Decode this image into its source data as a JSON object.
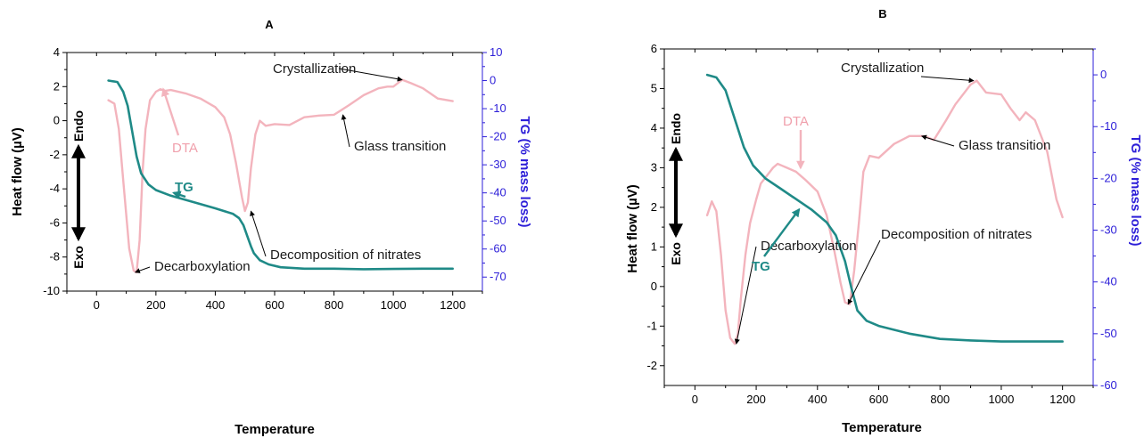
{
  "colors": {
    "tg": "#1f8a87",
    "dta": "#f3b4bd",
    "right_axis": "#2d1fd8",
    "axis": "#000000",
    "annotation_arrow": "#000000"
  },
  "chart_data": [
    {
      "type": "line",
      "panel_label": "A",
      "xlabel": "Temperature",
      "ylabel": "Heat flow (µV)",
      "y2label": "TG (% mass loss)",
      "xlim": [
        -100,
        1300
      ],
      "ylim": [
        -10,
        4
      ],
      "y2lim": [
        -75,
        10
      ],
      "x_ticks": [
        0,
        200,
        400,
        600,
        800,
        1000,
        1200
      ],
      "y_ticks": [
        -10,
        -8,
        -6,
        -4,
        -2,
        0,
        2,
        4
      ],
      "y2_ticks": [
        -70,
        -60,
        -50,
        -40,
        -30,
        -20,
        -10,
        0,
        10
      ],
      "endo_label": "Endo",
      "exo_label": "Exo",
      "series": [
        {
          "name": "DTA",
          "axis": "left",
          "x": [
            40,
            60,
            75,
            90,
            110,
            125,
            135,
            145,
            155,
            165,
            180,
            200,
            215,
            230,
            250,
            300,
            350,
            400,
            430,
            450,
            470,
            490,
            500,
            510,
            520,
            535,
            550,
            570,
            600,
            650,
            700,
            750,
            800,
            850,
            900,
            950,
            980,
            1000,
            1030,
            1060,
            1100,
            1150,
            1200
          ],
          "values": [
            1.2,
            1.0,
            -0.5,
            -3.5,
            -7.5,
            -8.8,
            -8.9,
            -7.0,
            -3.0,
            -0.5,
            1.2,
            1.7,
            1.85,
            1.75,
            1.8,
            1.6,
            1.3,
            0.8,
            0.2,
            -0.8,
            -2.5,
            -4.5,
            -5.3,
            -4.8,
            -2.8,
            -0.8,
            0.0,
            -0.3,
            -0.2,
            -0.25,
            0.2,
            0.3,
            0.35,
            0.9,
            1.5,
            1.9,
            2.0,
            2.0,
            2.4,
            2.2,
            1.9,
            1.3,
            1.15
          ]
        },
        {
          "name": "TG",
          "axis": "right",
          "x": [
            40,
            70,
            90,
            105,
            120,
            135,
            150,
            175,
            200,
            250,
            300,
            350,
            400,
            430,
            460,
            480,
            495,
            510,
            520,
            530,
            550,
            580,
            620,
            700,
            800,
            900,
            1000,
            1100,
            1200
          ],
          "values": [
            0,
            -0.5,
            -4,
            -9,
            -18,
            -27,
            -33,
            -37,
            -39,
            -41,
            -42.5,
            -44,
            -45.5,
            -46.5,
            -47.5,
            -49,
            -51.5,
            -56,
            -59,
            -61.5,
            -64,
            -65.5,
            -66.5,
            -67,
            -67,
            -67.2,
            -67.1,
            -67,
            -67
          ]
        }
      ],
      "annotations": [
        {
          "text": "Crystallization",
          "x": 1030,
          "y": 2.4
        },
        {
          "text": "Glass transition",
          "x": 830,
          "y": 0.35
        },
        {
          "text": "Decomposition of nitrates",
          "x": 520,
          "y": -5.3
        },
        {
          "text": "Decarboxylation",
          "x": 130,
          "y": -8.9
        },
        {
          "text": "DTA",
          "x": 225,
          "y": 1.85
        },
        {
          "text": "TG",
          "x": 260,
          "y": -40
        }
      ]
    },
    {
      "type": "line",
      "panel_label": "B",
      "xlabel": "Temperature",
      "ylabel": "Heat flow (µV)",
      "y2label": "TG (% mass loss)",
      "xlim": [
        -100,
        1300
      ],
      "ylim": [
        -2.5,
        6
      ],
      "y2lim": [
        -60,
        5
      ],
      "x_ticks": [
        0,
        200,
        400,
        600,
        800,
        1000,
        1200
      ],
      "y_ticks": [
        -2,
        -1,
        0,
        1,
        2,
        3,
        4,
        5,
        6
      ],
      "y2_ticks": [
        -60,
        -50,
        -40,
        -30,
        -20,
        -10,
        0
      ],
      "endo_label": "Endo",
      "exo_label": "Exo",
      "series": [
        {
          "name": "DTA",
          "axis": "left",
          "x": [
            40,
            55,
            70,
            85,
            100,
            115,
            130,
            140,
            150,
            165,
            180,
            200,
            215,
            230,
            240,
            255,
            270,
            285,
            300,
            330,
            360,
            400,
            430,
            455,
            475,
            490,
            505,
            520,
            535,
            550,
            570,
            600,
            650,
            700,
            750,
            780,
            820,
            850,
            900,
            920,
            950,
            1000,
            1030,
            1060,
            1080,
            1110,
            1150,
            1180,
            1200
          ],
          "values": [
            1.8,
            2.15,
            1.9,
            0.8,
            -0.6,
            -1.3,
            -1.45,
            -1.2,
            -0.3,
            0.8,
            1.6,
            2.2,
            2.6,
            2.75,
            2.85,
            3.0,
            3.1,
            3.05,
            3.0,
            2.9,
            2.7,
            2.4,
            1.8,
            0.9,
            0.1,
            -0.4,
            -0.45,
            0.4,
            1.6,
            2.9,
            3.3,
            3.25,
            3.6,
            3.8,
            3.8,
            3.7,
            4.2,
            4.6,
            5.1,
            5.2,
            4.9,
            4.85,
            4.5,
            4.2,
            4.4,
            4.2,
            3.4,
            2.2,
            1.75
          ]
        },
        {
          "name": "TG",
          "axis": "right",
          "x": [
            40,
            70,
            100,
            130,
            160,
            190,
            230,
            280,
            330,
            380,
            430,
            460,
            490,
            510,
            530,
            560,
            600,
            700,
            800,
            900,
            1000,
            1100,
            1200
          ],
          "values": [
            0,
            -0.5,
            -3,
            -8.5,
            -14,
            -17.5,
            -20,
            -22,
            -24,
            -26,
            -28.5,
            -31,
            -36,
            -41,
            -45.5,
            -47.5,
            -48.5,
            -50,
            -51,
            -51.3,
            -51.5,
            -51.5,
            -51.5
          ]
        }
      ],
      "annotations": [
        {
          "text": "Crystallization",
          "x": 910,
          "y": 5.2
        },
        {
          "text": "Glass transition",
          "x": 740,
          "y": 3.8
        },
        {
          "text": "Decomposition of nitrates",
          "x": 500,
          "y": -0.45
        },
        {
          "text": "Decarboxylation",
          "x": 135,
          "y": -1.45
        },
        {
          "text": "DTA",
          "x": 345,
          "y": 3.0
        },
        {
          "text": "TG",
          "x": 340,
          "y": -26
        }
      ]
    }
  ]
}
